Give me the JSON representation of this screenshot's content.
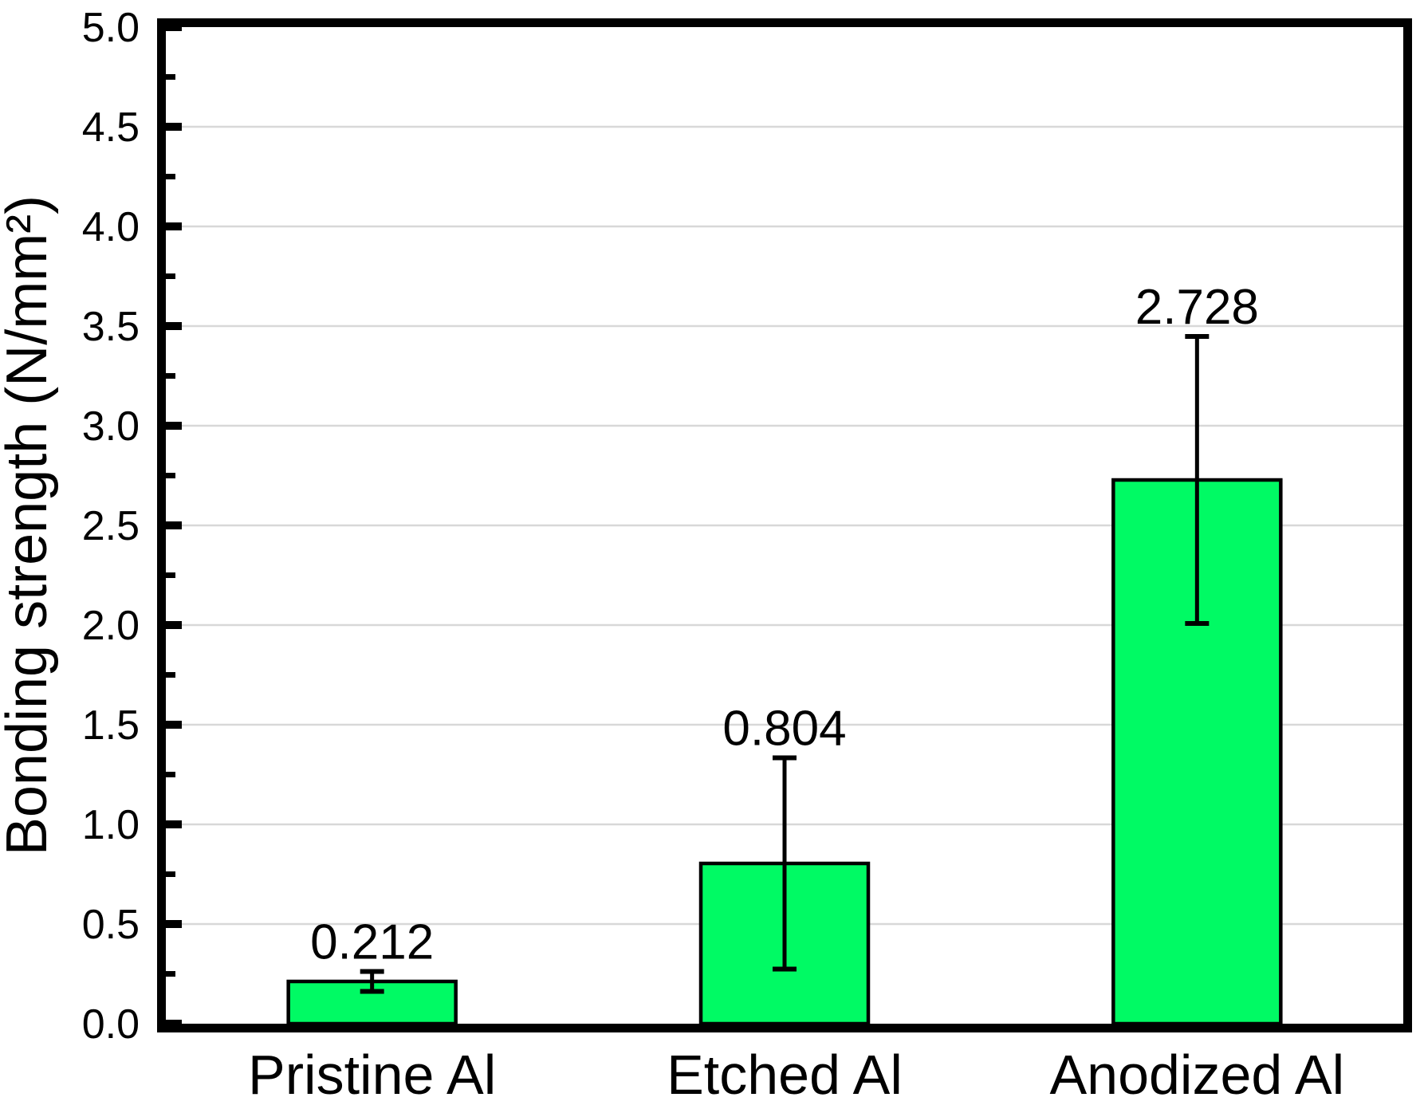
{
  "chart_data": {
    "type": "bar",
    "categories": [
      "Pristine Al",
      "Etched Al",
      "Anodized Al"
    ],
    "values": [
      0.212,
      0.804,
      2.728
    ],
    "errors": [
      0.05,
      0.53,
      0.72
    ],
    "value_labels": [
      "0.212",
      "0.804",
      "2.728"
    ],
    "title": "",
    "xlabel": "",
    "ylabel": "Bonding strength (N/mm²)",
    "ylim": [
      0.0,
      5.0
    ],
    "ytick_step": 0.5,
    "yminor_step": 0.25,
    "ytick_labels": [
      "0.0",
      "0.5",
      "1.0",
      "1.5",
      "2.0",
      "2.5",
      "3.0",
      "3.5",
      "4.0",
      "4.5",
      "5.0"
    ],
    "grid": true,
    "grid_axis": "y",
    "legend": "none",
    "colors": {
      "bar_fill": "#00FA64",
      "bar_edge": "#000000",
      "error_bar": "#000000",
      "grid_line": "#d8d8d8",
      "axis_frame": "#000000",
      "text": "#000000",
      "background": "#ffffff"
    }
  }
}
